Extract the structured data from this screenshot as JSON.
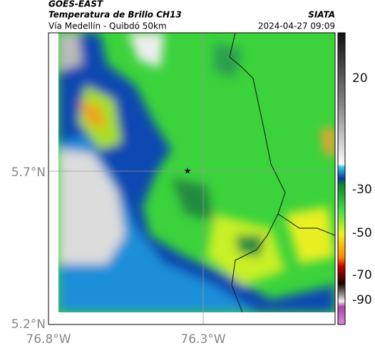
{
  "header": {
    "satellite": "GOES-EAST",
    "product": "Temperatura de Brillo CH13",
    "route": "Vía Medellín - Quibdó 50km",
    "source": "SIATA",
    "datetime": "2024-04-27 09:09"
  },
  "map": {
    "y_labels": [
      "5.7°N",
      "5.2°N"
    ],
    "x_labels": [
      "76.8°W",
      "76.3°W"
    ]
  },
  "colorbar": {
    "labels": [
      "20",
      "-30",
      "-50",
      "-70",
      "-90"
    ]
  }
}
